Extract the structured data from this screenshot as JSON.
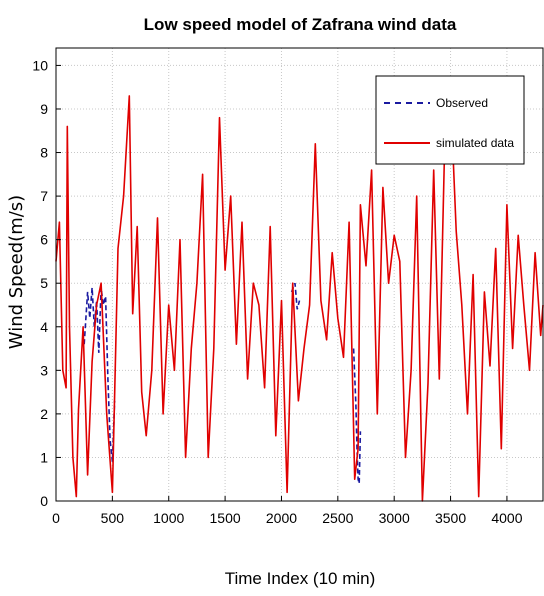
{
  "chart_data": {
    "type": "line",
    "title": "Low speed model of Zafrana wind data",
    "xlabel": "Time Index (10 min)",
    "ylabel": "Wind Speed(m/s)",
    "xlim": [
      0,
      4320
    ],
    "ylim": [
      0,
      10.4
    ],
    "x_ticks": [
      0,
      500,
      1000,
      1500,
      2000,
      2500,
      3000,
      3500,
      4000
    ],
    "y_ticks": [
      0,
      1,
      2,
      3,
      4,
      5,
      6,
      7,
      8,
      9,
      10
    ],
    "grid": true,
    "legend_position": "top-right",
    "colors": {
      "observed": "#1a1aa0",
      "simulated": "#e00000"
    },
    "series": [
      {
        "name": "Observed",
        "style": "dashed",
        "segments": [
          {
            "x": [
              250,
              280,
              300,
              320,
              340,
              360,
              380,
              400,
              420,
              440,
              460,
              480,
              500,
              520
            ],
            "y": [
              3.6,
              4.8,
              4.2,
              4.9,
              4.0,
              4.6,
              3.4,
              4.9,
              4.5,
              4.7,
              2.8,
              1.4,
              0.9,
              2.3
            ]
          },
          {
            "x": [
              2090,
              2120,
              2140,
              2160
            ],
            "y": [
              4.8,
              5.0,
              4.4,
              4.6
            ]
          },
          {
            "x": [
              2640,
              2660,
              2670,
              2680,
              2690,
              2700
            ],
            "y": [
              3.5,
              2.2,
              1.2,
              0.5,
              0.4,
              1.6
            ]
          }
        ]
      },
      {
        "name": "simulated data",
        "style": "solid",
        "x": [
          0,
          30,
          60,
          90,
          100,
          120,
          150,
          180,
          200,
          240,
          280,
          320,
          360,
          400,
          450,
          500,
          550,
          600,
          650,
          680,
          720,
          760,
          800,
          850,
          900,
          950,
          1000,
          1050,
          1100,
          1150,
          1200,
          1250,
          1300,
          1350,
          1400,
          1450,
          1500,
          1550,
          1600,
          1650,
          1700,
          1750,
          1800,
          1850,
          1900,
          1950,
          2000,
          2050,
          2100,
          2150,
          2200,
          2250,
          2300,
          2350,
          2400,
          2450,
          2500,
          2550,
          2600,
          2650,
          2680,
          2700,
          2750,
          2800,
          2850,
          2900,
          2950,
          3000,
          3050,
          3100,
          3150,
          3200,
          3250,
          3300,
          3350,
          3400,
          3450,
          3500,
          3550,
          3600,
          3650,
          3700,
          3750,
          3800,
          3850,
          3900,
          3950,
          4000,
          4050,
          4100,
          4150,
          4200,
          4250,
          4300,
          4320
        ],
        "y": [
          5.5,
          6.4,
          3.0,
          2.6,
          8.6,
          4.0,
          1.0,
          0.1,
          2.1,
          4.0,
          0.6,
          3.2,
          4.5,
          5.0,
          2.0,
          0.2,
          5.8,
          7.0,
          9.3,
          4.3,
          6.3,
          2.5,
          1.5,
          3.0,
          6.5,
          2.0,
          4.5,
          3.0,
          6.0,
          1.0,
          3.5,
          5.0,
          7.5,
          1.0,
          3.5,
          8.8,
          5.3,
          7.0,
          3.6,
          6.4,
          2.8,
          5.0,
          4.5,
          2.6,
          6.3,
          1.5,
          4.6,
          0.2,
          5.0,
          2.3,
          3.5,
          4.5,
          8.2,
          4.6,
          3.7,
          5.7,
          4.2,
          3.3,
          6.4,
          0.5,
          1.2,
          6.8,
          5.4,
          7.6,
          2.0,
          7.2,
          5.0,
          6.1,
          5.5,
          1.0,
          3.0,
          7.0,
          0.0,
          2.7,
          7.6,
          2.8,
          8.4,
          9.3,
          6.2,
          4.5,
          2.0,
          5.2,
          0.1,
          4.8,
          3.1,
          5.8,
          1.2,
          6.8,
          3.5,
          6.1,
          4.5,
          3.0,
          5.7,
          3.8,
          4.5
        ]
      }
    ]
  }
}
